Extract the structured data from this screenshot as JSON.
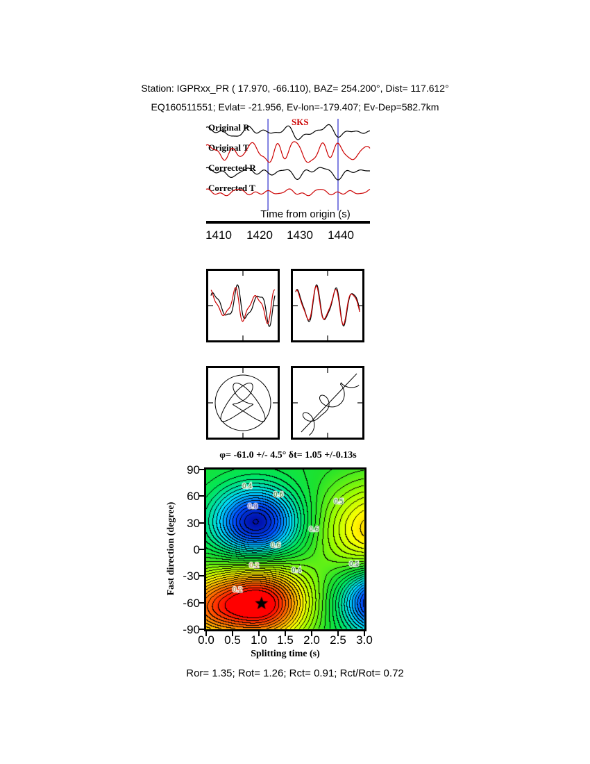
{
  "header": {
    "station_line": "Station: IGPRxx_PR ( 17.970, -66.110), BAZ= 254.200°, Dist= 117.612°",
    "event_line": "EQ160511551; Evlat= -21.956, Ev-lon=-179.407; Ev-Dep=582.7km"
  },
  "footer": {
    "stats_line": "Ror= 1.35; Rot= 1.26; Rct= 0.91; Rct/Rot= 0.72"
  },
  "chart_data": [
    {
      "type": "line",
      "id": "waveform-traces",
      "phase_label": "SKS",
      "xlabel": "Time from origin (s)",
      "xlim": [
        1407,
        1447
      ],
      "xticks": [
        "1410",
        "1420",
        "1430",
        "1440"
      ],
      "xtick_values": [
        1410,
        1420,
        1430,
        1440
      ],
      "window_s": [
        1422.1,
        1439.2
      ],
      "window_color": "#3b3bd0",
      "traces": [
        {
          "label": "Original R",
          "color": "#000000",
          "amp": 11,
          "components": [
            [
              4.5,
              5,
              0.3
            ],
            [
              8,
              4,
              1.7
            ],
            [
              12,
              2.5,
              0.9
            ],
            [
              2.5,
              3,
              2.2
            ]
          ],
          "envelope": [
            0.6,
            0.22,
            0.5
          ]
        },
        {
          "label": "Original T",
          "color": "#cc0000",
          "amp": 15,
          "components": [
            [
              4,
              6,
              1.2
            ],
            [
              7.5,
              7,
              0.4
            ],
            [
              11,
              3.5,
              2.6
            ],
            [
              14,
              2,
              1.0
            ]
          ],
          "envelope": [
            0.55,
            0.2,
            0.8
          ]
        },
        {
          "label": "Corrected R",
          "color": "#000000",
          "amp": 11,
          "components": [
            [
              4.5,
              5,
              0.8
            ],
            [
              8,
              4,
              2.3
            ],
            [
              12,
              2.5,
              0.2
            ],
            [
              3,
              3,
              1.5
            ]
          ],
          "envelope": [
            0.6,
            0.22,
            0.5
          ]
        },
        {
          "label": "Corrected T",
          "color": "#cc0000",
          "amp": 5,
          "components": [
            [
              6,
              3,
              0.7
            ],
            [
              10,
              2,
              1.9
            ],
            [
              14,
              1.5,
              0.2
            ],
            [
              4,
              2,
              2.4
            ]
          ],
          "envelope": null
        }
      ]
    },
    {
      "type": "line",
      "id": "fast-slow-original",
      "series": [
        {
          "color": "#000000",
          "amp": 30,
          "components": [
            [
              3,
              1,
              0.2
            ],
            [
              5,
              0.4,
              1.1
            ],
            [
              7,
              0.25,
              2.0
            ]
          ]
        },
        {
          "color": "#cc0000",
          "amp": 26,
          "components": [
            [
              3,
              1,
              1.0
            ],
            [
              5,
              0.4,
              1.9
            ],
            [
              7,
              0.25,
              2.8
            ]
          ]
        }
      ]
    },
    {
      "type": "line",
      "id": "fast-slow-corrected",
      "series": [
        {
          "color": "#000000",
          "amp": 30,
          "components": [
            [
              3.5,
              1,
              0.6
            ],
            [
              6,
              0.3,
              1.9
            ]
          ]
        },
        {
          "color": "#cc0000",
          "amp": 28,
          "components": [
            [
              3.5,
              1,
              0.75
            ],
            [
              6,
              0.3,
              2.05
            ]
          ]
        }
      ]
    },
    {
      "type": "scatter",
      "id": "particle-motion-original",
      "circle_radius": 40,
      "curve": {
        "x_comps": [
          [
            3,
            20,
            0.5
          ],
          [
            1,
            12,
            1.2
          ]
        ],
        "y_comps": [
          [
            2,
            22,
            1.8
          ],
          [
            4,
            10,
            0.3
          ]
        ],
        "x_drift": [
          0,
          0
        ],
        "y_drift": [
          0,
          0
        ]
      }
    },
    {
      "type": "scatter",
      "id": "particle-motion-corrected",
      "line": [
        12,
        92,
        92,
        8
      ],
      "curve": {
        "x_comps": [
          [
            3,
            10,
            1.0
          ],
          [
            5,
            4,
            0.2
          ]
        ],
        "y_comps": [
          [
            3,
            10,
            2.4
          ],
          [
            5,
            4,
            1.5
          ]
        ],
        "x_drift": [
          -36,
          36
        ],
        "y_drift": [
          36,
          -36
        ]
      }
    },
    {
      "type": "heatmap",
      "id": "splitting-error-surface",
      "title": "φ= -61.0 +/- 4.5°  δt= 1.05 +/-0.13s",
      "xlabel": "Splitting time (s)",
      "ylabel": "Fast direction (degree)",
      "xlim": [
        0,
        3
      ],
      "ylim": [
        -90,
        90
      ],
      "xticks": [
        "0.0",
        "0.5",
        "1.0",
        "1.5",
        "2.0",
        "2.5",
        "3.0"
      ],
      "xtick_values": [
        0,
        0.5,
        1,
        1.5,
        2,
        2.5,
        3
      ],
      "yticks": [
        "90",
        "60",
        "30",
        "0",
        "-30",
        "-60",
        "-90"
      ],
      "ytick_values": [
        90,
        60,
        30,
        0,
        -30,
        -60,
        -90
      ],
      "best": {
        "phi_deg": -61.0,
        "phi_err_deg": 4.5,
        "dt_s": 1.05,
        "dt_err_s": 0.13
      },
      "field": {
        "base": 0.48,
        "step": 0.03,
        "blobs": [
          {
            "x": 1.05,
            "y": -61,
            "sx": 0.62,
            "sy": 30,
            "amp": 0.55
          },
          {
            "x": 0.95,
            "y": 30,
            "sx": 0.55,
            "sy": 27,
            "amp": -0.46
          },
          {
            "x": 3.25,
            "y": 22,
            "sx": 0.75,
            "sy": 38,
            "amp": 0.3
          },
          {
            "x": 3.3,
            "y": -58,
            "sx": 0.5,
            "sy": 26,
            "amp": -0.48
          },
          {
            "x": 0.0,
            "y": -66,
            "sx": 0.5,
            "sy": 28,
            "amp": 0.28
          }
        ]
      },
      "colormap": [
        [
          0,
          0,
          0,
          150
        ],
        [
          0.14,
          0,
          80,
          255
        ],
        [
          0.28,
          0,
          220,
          255
        ],
        [
          0.42,
          0,
          230,
          90
        ],
        [
          0.5,
          30,
          225,
          45
        ],
        [
          0.62,
          160,
          255,
          0
        ],
        [
          0.72,
          255,
          255,
          0
        ],
        [
          0.84,
          255,
          150,
          0
        ],
        [
          1,
          255,
          0,
          0
        ]
      ],
      "contour_labels": [
        {
          "text": "0.4",
          "x": 52,
          "y": 27,
          "color": "#006600"
        },
        {
          "text": "0.6",
          "x": 97,
          "y": 39,
          "color": "#006600"
        },
        {
          "text": "0.8",
          "x": 60,
          "y": 56,
          "color": "#000099"
        },
        {
          "text": "0.5",
          "x": 184,
          "y": 49,
          "color": "#006600"
        },
        {
          "text": "0.6",
          "x": 148,
          "y": 89,
          "color": "#006600"
        },
        {
          "text": "0.6",
          "x": 93,
          "y": 112,
          "color": "#006600"
        },
        {
          "text": "0.2",
          "x": 62,
          "y": 141,
          "color": "#997700"
        },
        {
          "text": "0.4",
          "x": 123,
          "y": 148,
          "color": "#006600"
        },
        {
          "text": "0.5",
          "x": 206,
          "y": 139,
          "color": "#006600"
        },
        {
          "text": "0.2",
          "x": 38,
          "y": 176,
          "color": "#aa5500"
        }
      ]
    }
  ]
}
